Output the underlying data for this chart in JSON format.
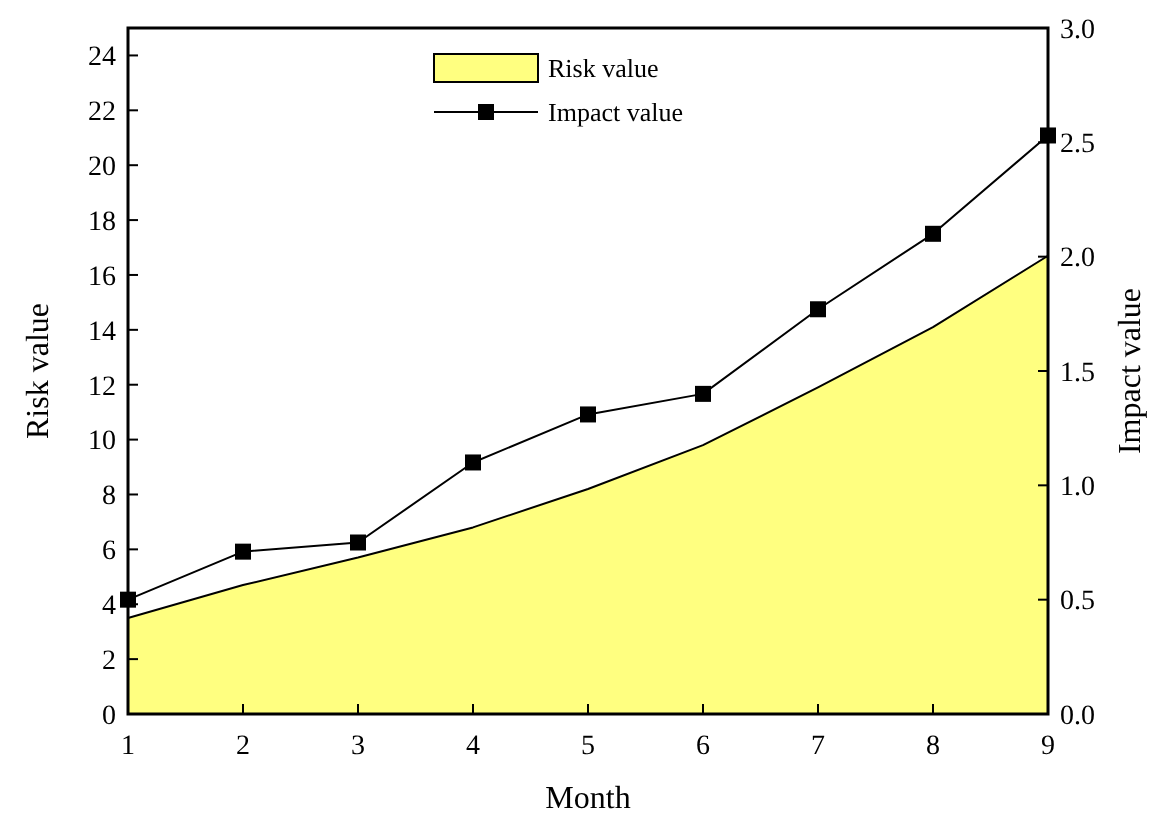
{
  "chart_data": {
    "type": "area",
    "xlabel": "Month",
    "ylabel": "Risk value",
    "y2label": "Impact value",
    "x": [
      1,
      2,
      3,
      4,
      5,
      6,
      7,
      8,
      9
    ],
    "series": [
      {
        "name": "Risk value",
        "color": "#ffff80",
        "values": [
          3.5,
          4.7,
          5.7,
          6.8,
          8.2,
          9.8,
          11.9,
          14.1,
          16.7
        ]
      },
      {
        "name": "Impact value",
        "type": "line",
        "axis": "y2",
        "color": "#000000",
        "marker": "square",
        "values": [
          0.5,
          0.71,
          0.75,
          1.1,
          1.31,
          1.4,
          1.77,
          2.1,
          2.53
        ]
      }
    ],
    "xlim": [
      1,
      9
    ],
    "xticks": [
      1,
      2,
      3,
      4,
      5,
      6,
      7,
      8,
      9
    ],
    "ylim": [
      0,
      25
    ],
    "yticks": [
      0,
      2,
      4,
      6,
      8,
      10,
      12,
      14,
      16,
      18,
      20,
      22,
      24
    ],
    "y2lim": [
      0,
      3
    ],
    "y2ticks": [
      {
        "value": 0,
        "label": "0.0"
      },
      {
        "value": 0.5,
        "label": "0.5"
      },
      {
        "value": 1,
        "label": "1.0"
      },
      {
        "value": 1.5,
        "label": "1.5"
      },
      {
        "value": 2,
        "label": "2.0"
      },
      {
        "value": 2.5,
        "label": "2.5"
      },
      {
        "value": 3,
        "label": "3.0"
      }
    ],
    "legend": "top",
    "grid": false
  }
}
